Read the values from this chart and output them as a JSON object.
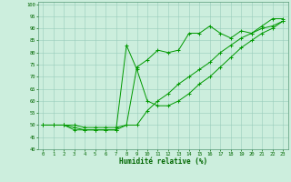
{
  "xlabel": "Humidité relative (%)",
  "background_color": "#cceedd",
  "grid_color": "#99ccbb",
  "line_color": "#009900",
  "xlim": [
    -0.5,
    23.5
  ],
  "ylim": [
    40,
    101
  ],
  "xticks": [
    0,
    1,
    2,
    3,
    4,
    5,
    6,
    7,
    8,
    9,
    10,
    11,
    12,
    13,
    14,
    15,
    16,
    17,
    18,
    19,
    20,
    21,
    22,
    23
  ],
  "yticks": [
    40,
    45,
    50,
    55,
    60,
    65,
    70,
    75,
    80,
    85,
    90,
    95,
    100
  ],
  "series1_x": [
    0,
    1,
    2,
    3,
    4,
    5,
    6,
    7,
    8,
    9,
    10,
    11,
    12,
    13,
    14,
    15,
    16,
    17,
    18,
    19,
    20,
    21,
    22,
    23
  ],
  "series1_y": [
    50,
    50,
    50,
    50,
    49,
    49,
    49,
    49,
    50,
    74,
    77,
    81,
    80,
    81,
    88,
    88,
    91,
    88,
    86,
    89,
    88,
    91,
    94,
    94
  ],
  "series2_x": [
    0,
    1,
    2,
    3,
    4,
    5,
    6,
    7,
    8,
    9,
    10,
    11,
    12,
    13,
    14,
    15,
    16,
    17,
    18,
    19,
    20,
    21,
    22,
    23
  ],
  "series2_y": [
    50,
    50,
    50,
    49,
    48,
    48,
    48,
    48,
    50,
    50,
    56,
    60,
    63,
    67,
    70,
    73,
    76,
    80,
    83,
    86,
    88,
    90,
    91,
    93
  ],
  "series3_x": [
    0,
    1,
    2,
    3,
    4,
    5,
    6,
    7,
    8,
    9,
    10,
    11,
    12,
    13,
    14,
    15,
    16,
    17,
    18,
    19,
    20,
    21,
    22,
    23
  ],
  "series3_y": [
    50,
    50,
    50,
    48,
    48,
    48,
    48,
    48,
    83,
    73,
    60,
    58,
    58,
    60,
    63,
    67,
    70,
    74,
    78,
    82,
    85,
    88,
    90,
    93
  ]
}
